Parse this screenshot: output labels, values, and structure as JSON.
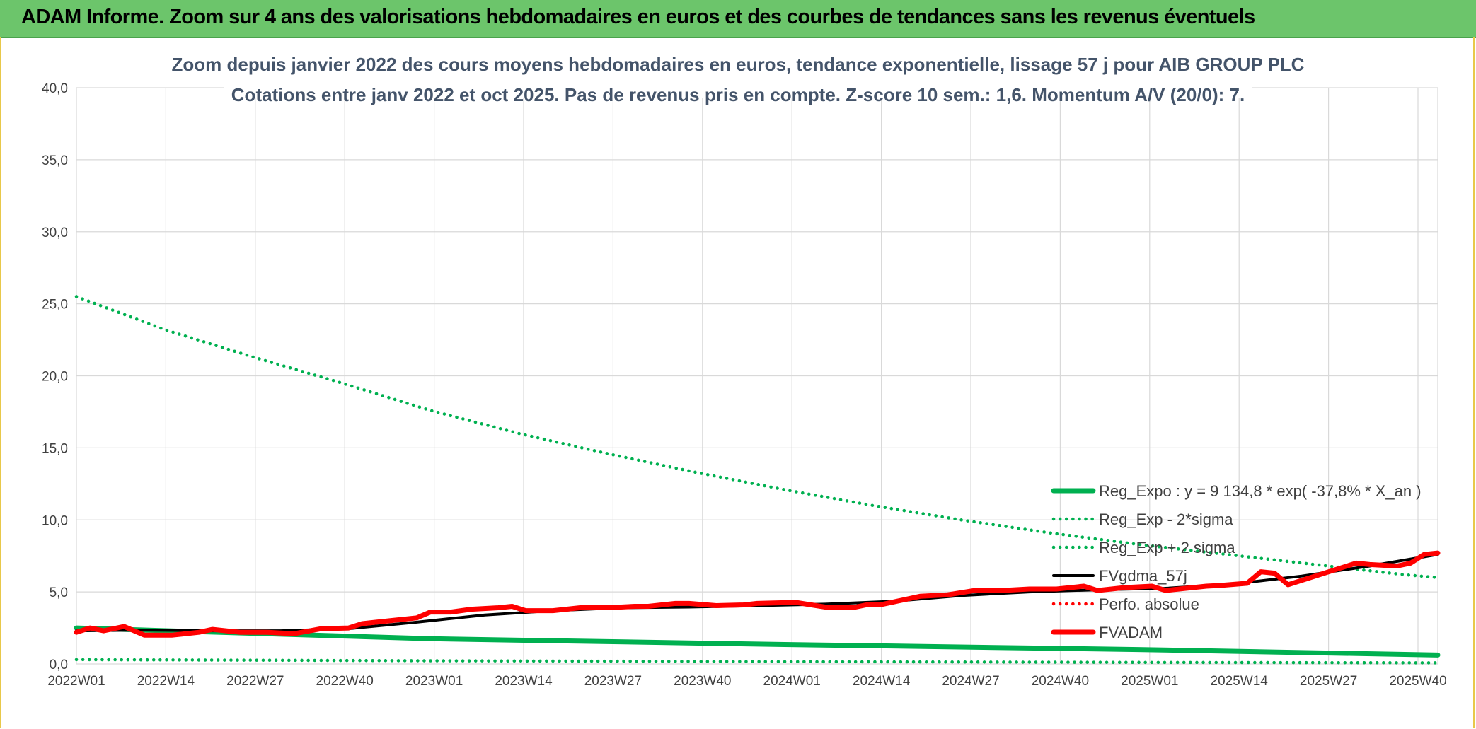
{
  "header": {
    "title": "ADAM Informe. Zoom sur 4 ans des valorisations hebdomadaires en euros et des courbes de tendances sans les revenus éventuels"
  },
  "chart_data": {
    "type": "line",
    "title": "Zoom depuis janvier 2022 des cours moyens hebdomadaires en euros, tendance exponentielle, lissage 57 j pour AIB GROUP PLC",
    "subtitle": "Cotations entre janv 2022 et oct 2025. Pas de revenus pris en compte. Z-score 10 sem.: 1,6. Momentum A/V (20/0): 7.",
    "xlabel": "",
    "ylabel": "",
    "ylim": [
      0,
      40
    ],
    "yticks": [
      "0,0",
      "5,0",
      "10,0",
      "15,0",
      "20,0",
      "25,0",
      "30,0",
      "35,0",
      "40,0"
    ],
    "xticks": [
      "2022W01",
      "2022W14",
      "2022W27",
      "2022W40",
      "2023W01",
      "2023W14",
      "2023W27",
      "2023W40",
      "2024W01",
      "2024W14",
      "2024W27",
      "2024W40",
      "2025W01",
      "2025W14",
      "2025W27",
      "2025W40"
    ],
    "x_weeks": [
      0,
      200
    ],
    "series": [
      {
        "name": "Reg_Expo : y = 9 134,8 * exp( -37,8% *  X_an )",
        "style": "solid-thick",
        "color": "#00b050",
        "points": [
          [
            0,
            2.5
          ],
          [
            52,
            1.75
          ],
          [
            104,
            1.35
          ],
          [
            156,
            1.0
          ],
          [
            200,
            0.62
          ]
        ]
      },
      {
        "name": "Reg_Exp - 2*sigma",
        "style": "dotted",
        "color": "#00b050",
        "points": [
          [
            0,
            0.3
          ],
          [
            52,
            0.22
          ],
          [
            104,
            0.16
          ],
          [
            156,
            0.11
          ],
          [
            200,
            0.08
          ]
        ]
      },
      {
        "name": "Reg_Exp + 2 sigma",
        "style": "dotted",
        "color": "#00b050",
        "points": [
          [
            0,
            25.5
          ],
          [
            13,
            23.2
          ],
          [
            26,
            21.3
          ],
          [
            39,
            19.5
          ],
          [
            52,
            17.6
          ],
          [
            65,
            16.0
          ],
          [
            78,
            14.6
          ],
          [
            91,
            13.3
          ],
          [
            104,
            12.1
          ],
          [
            117,
            11.0
          ],
          [
            130,
            10.0
          ],
          [
            143,
            9.1
          ],
          [
            156,
            8.3
          ],
          [
            169,
            7.6
          ],
          [
            182,
            6.9
          ],
          [
            195,
            6.2
          ],
          [
            200,
            6.0
          ]
        ]
      },
      {
        "name": "FVgdma_57j",
        "style": "solid",
        "color": "#000000",
        "points": [
          [
            0,
            2.3
          ],
          [
            10,
            2.35
          ],
          [
            20,
            2.3
          ],
          [
            30,
            2.3
          ],
          [
            40,
            2.45
          ],
          [
            50,
            2.9
          ],
          [
            60,
            3.4
          ],
          [
            70,
            3.7
          ],
          [
            80,
            3.9
          ],
          [
            90,
            3.95
          ],
          [
            100,
            4.05
          ],
          [
            110,
            4.15
          ],
          [
            120,
            4.35
          ],
          [
            130,
            4.75
          ],
          [
            140,
            5.0
          ],
          [
            150,
            5.15
          ],
          [
            160,
            5.25
          ],
          [
            170,
            5.55
          ],
          [
            180,
            6.1
          ],
          [
            190,
            6.8
          ],
          [
            200,
            7.6
          ]
        ]
      },
      {
        "name": "Perfo. absolue",
        "style": "dotted",
        "color": "#ff0000",
        "points": []
      },
      {
        "name": "FVADAM",
        "style": "solid-thick",
        "color": "#ff0000",
        "points": [
          [
            0,
            2.2
          ],
          [
            2,
            2.5
          ],
          [
            4,
            2.3
          ],
          [
            7,
            2.6
          ],
          [
            10,
            2.0
          ],
          [
            14,
            2.0
          ],
          [
            18,
            2.2
          ],
          [
            20,
            2.4
          ],
          [
            24,
            2.2
          ],
          [
            28,
            2.2
          ],
          [
            32,
            2.1
          ],
          [
            36,
            2.45
          ],
          [
            40,
            2.5
          ],
          [
            42,
            2.8
          ],
          [
            46,
            3.0
          ],
          [
            50,
            3.2
          ],
          [
            52,
            3.6
          ],
          [
            55,
            3.6
          ],
          [
            58,
            3.8
          ],
          [
            62,
            3.9
          ],
          [
            64,
            4.0
          ],
          [
            66,
            3.7
          ],
          [
            70,
            3.7
          ],
          [
            74,
            3.9
          ],
          [
            78,
            3.9
          ],
          [
            82,
            4.0
          ],
          [
            84,
            4.0
          ],
          [
            88,
            4.2
          ],
          [
            90,
            4.2
          ],
          [
            94,
            4.05
          ],
          [
            98,
            4.1
          ],
          [
            100,
            4.2
          ],
          [
            104,
            4.25
          ],
          [
            106,
            4.25
          ],
          [
            108,
            4.1
          ],
          [
            110,
            3.95
          ],
          [
            112,
            3.95
          ],
          [
            114,
            3.9
          ],
          [
            116,
            4.1
          ],
          [
            118,
            4.1
          ],
          [
            120,
            4.3
          ],
          [
            124,
            4.7
          ],
          [
            128,
            4.8
          ],
          [
            132,
            5.1
          ],
          [
            136,
            5.1
          ],
          [
            140,
            5.2
          ],
          [
            144,
            5.2
          ],
          [
            148,
            5.4
          ],
          [
            150,
            5.1
          ],
          [
            154,
            5.3
          ],
          [
            158,
            5.4
          ],
          [
            160,
            5.1
          ],
          [
            162,
            5.2
          ],
          [
            164,
            5.3
          ],
          [
            166,
            5.4
          ],
          [
            168,
            5.45
          ],
          [
            172,
            5.6
          ],
          [
            174,
            6.4
          ],
          [
            176,
            6.3
          ],
          [
            178,
            5.5
          ],
          [
            180,
            5.8
          ],
          [
            184,
            6.4
          ],
          [
            188,
            7.0
          ],
          [
            190,
            6.9
          ],
          [
            194,
            6.8
          ],
          [
            196,
            7.0
          ],
          [
            198,
            7.6
          ],
          [
            200,
            7.7
          ]
        ]
      }
    ],
    "legend_position": "bottom-right",
    "grid": true
  }
}
